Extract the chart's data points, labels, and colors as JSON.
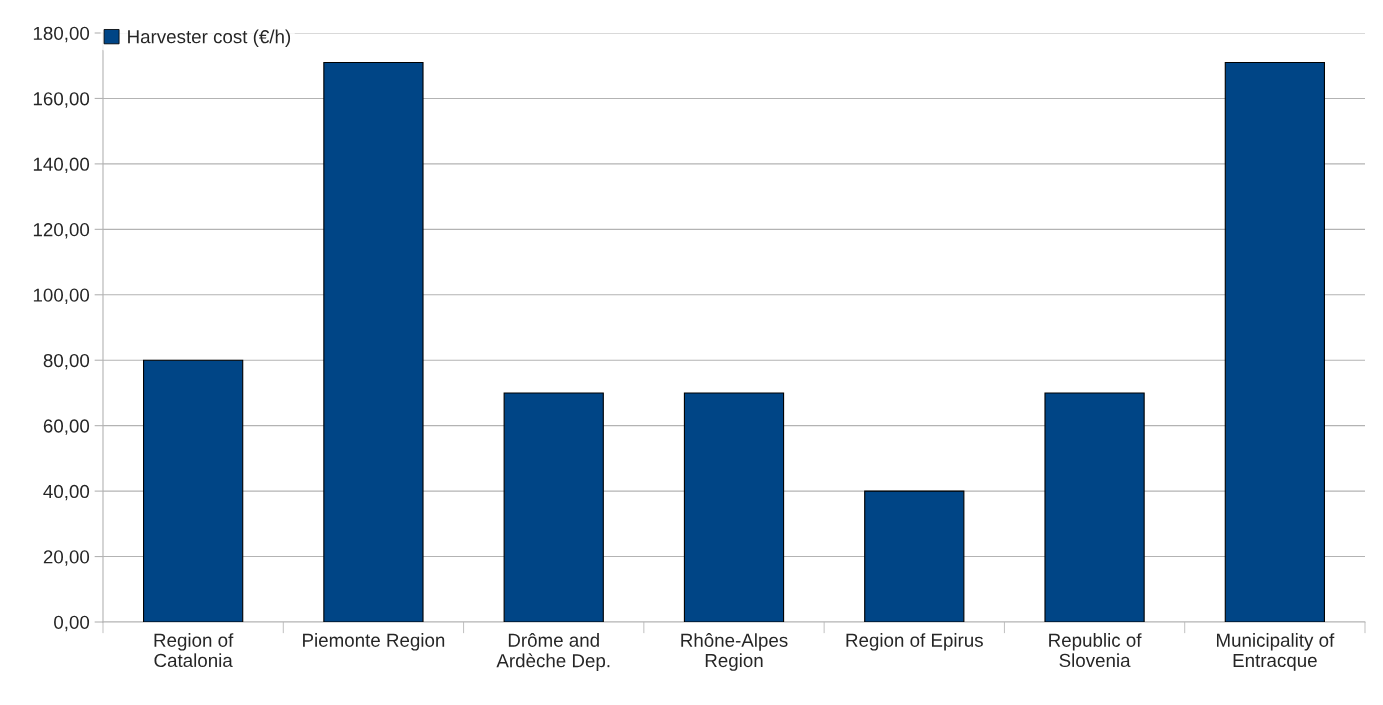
{
  "chart_data": {
    "type": "bar",
    "categories": [
      "Region of\nCatalonia",
      "Piemonte Region",
      "Drôme and\nArdèche Dep.",
      "Rhône-Alpes\nRegion",
      "Region of Epirus",
      "Republic of\nSlovenia",
      "Municipality of\nEntracque"
    ],
    "series": [
      {
        "name": "Harvester cost (€/h)",
        "color": "#004586",
        "values": [
          80,
          171,
          70,
          70,
          40,
          70,
          171
        ]
      }
    ],
    "ylim": [
      0,
      180
    ],
    "yticks": [
      {
        "value": 0,
        "label": "0,00"
      },
      {
        "value": 20,
        "label": "20,00"
      },
      {
        "value": 40,
        "label": "40,00"
      },
      {
        "value": 60,
        "label": "60,00"
      },
      {
        "value": 80,
        "label": "80,00"
      },
      {
        "value": 100,
        "label": "100,00"
      },
      {
        "value": 120,
        "label": "120,00"
      },
      {
        "value": 140,
        "label": "140,00"
      },
      {
        "value": 160,
        "label": "160,00"
      },
      {
        "value": 180,
        "label": "180,00"
      }
    ],
    "grid": "y",
    "legend": "top left"
  }
}
